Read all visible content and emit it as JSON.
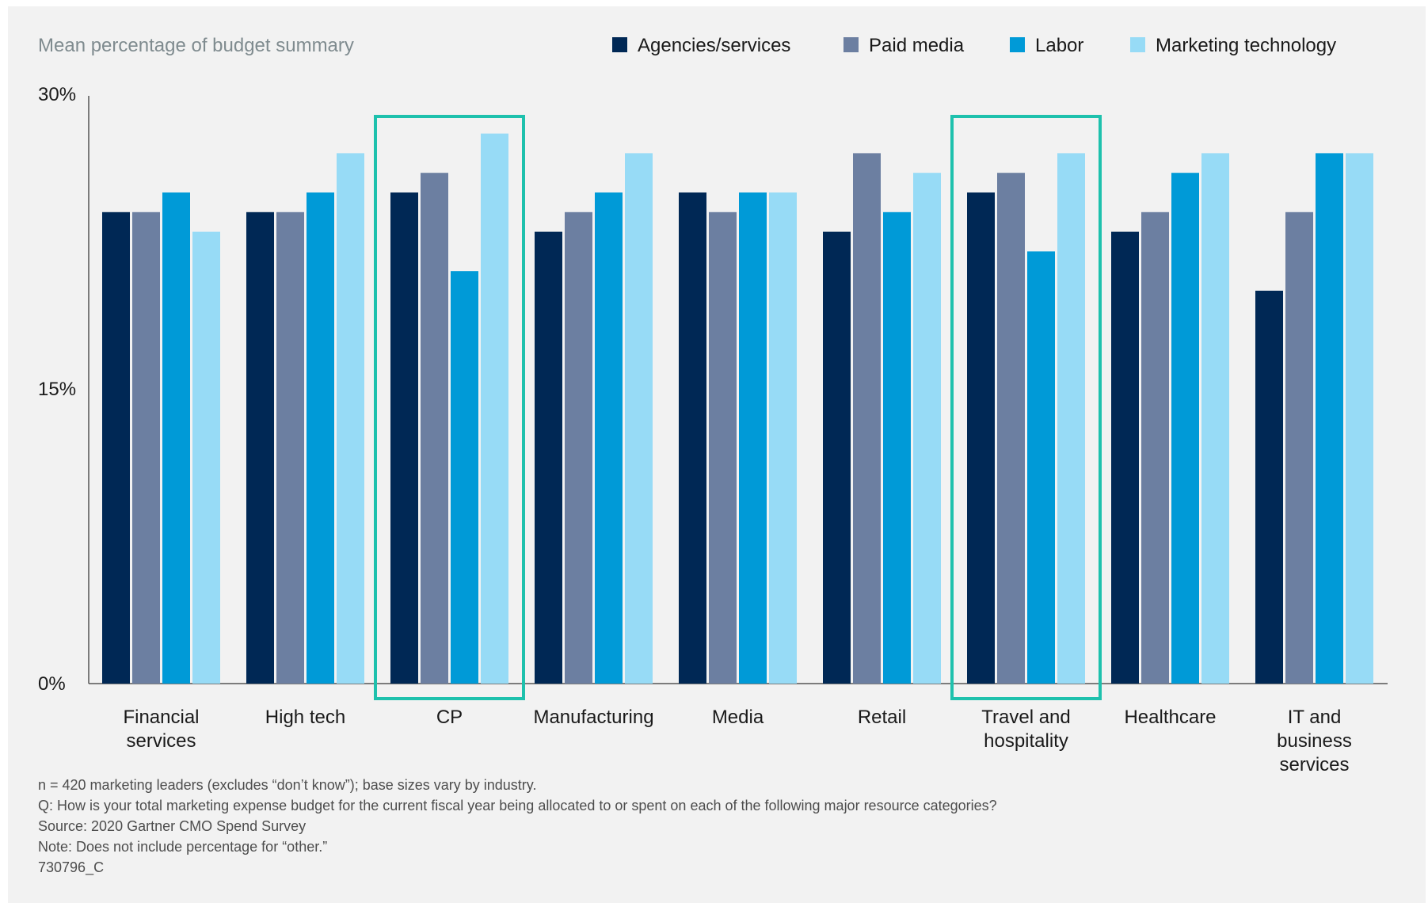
{
  "chart_data": {
    "type": "bar",
    "title": "Mean percentage of budget summary",
    "xlabel": "",
    "ylabel": "",
    "ylim": [
      0,
      30
    ],
    "yticks": [
      {
        "value": 0,
        "label": "0%"
      },
      {
        "value": 15,
        "label": "15%"
      },
      {
        "value": 30,
        "label": "30%"
      }
    ],
    "legend_position": "top-right",
    "grid": false,
    "categories": [
      [
        "Financial",
        "services"
      ],
      [
        "High tech"
      ],
      [
        "CP"
      ],
      [
        "Manufacturing"
      ],
      [
        "Media"
      ],
      [
        "Retail"
      ],
      [
        "Travel and",
        "hospitality"
      ],
      [
        "Healthcare"
      ],
      [
        "IT and",
        "business",
        "services"
      ]
    ],
    "highlighted_categories": [
      "CP",
      "Travel and hospitality"
    ],
    "highlight_color": "#1ec1ad",
    "series": [
      {
        "name": "Agencies/services",
        "color": "#002855",
        "values": [
          24,
          24,
          25,
          23,
          25,
          23,
          25,
          23,
          20
        ]
      },
      {
        "name": "Paid media",
        "color": "#6c7fa1",
        "values": [
          24,
          24,
          26,
          24,
          24,
          27,
          26,
          24,
          24
        ]
      },
      {
        "name": "Labor",
        "color": "#009ad7",
        "values": [
          25,
          25,
          21,
          25,
          25,
          24,
          22,
          26,
          27
        ]
      },
      {
        "name": "Marketing technology",
        "color": "#97dbf6",
        "values": [
          23,
          27,
          28,
          27,
          25,
          26,
          27,
          27,
          27
        ]
      }
    ]
  },
  "notes": [
    "n = 420 marketing leaders (excludes “don’t know”); base sizes vary by industry.",
    "Q: How is your total marketing expense budget for the current fiscal year being allocated to or spent on each of the following major resource categories?",
    "Source: 2020 Gartner CMO Spend Survey",
    "Note: Does not include percentage for “other.”",
    "730796_C"
  ]
}
